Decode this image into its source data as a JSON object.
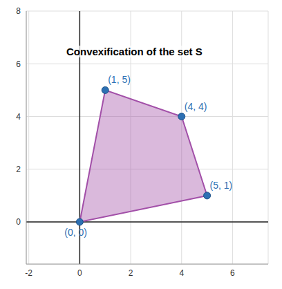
{
  "chart_data": {
    "type": "polygon",
    "title": "Convexification of the set S",
    "x": [
      0,
      1,
      4,
      5
    ],
    "y": [
      0,
      5,
      4,
      1
    ],
    "value_labels": [
      "(0, 0)",
      "(1, 5)",
      "(4, 4)",
      "(5, 1)"
    ],
    "color": "#a24fa8",
    "marker": "circle",
    "xlim": [
      -2.1,
      7.4
    ],
    "ylim": [
      -1.6,
      8
    ],
    "xticks": [
      -2,
      0,
      2,
      4,
      6
    ],
    "yticks": [
      0,
      2,
      4,
      6,
      8
    ],
    "grid": true
  }
}
